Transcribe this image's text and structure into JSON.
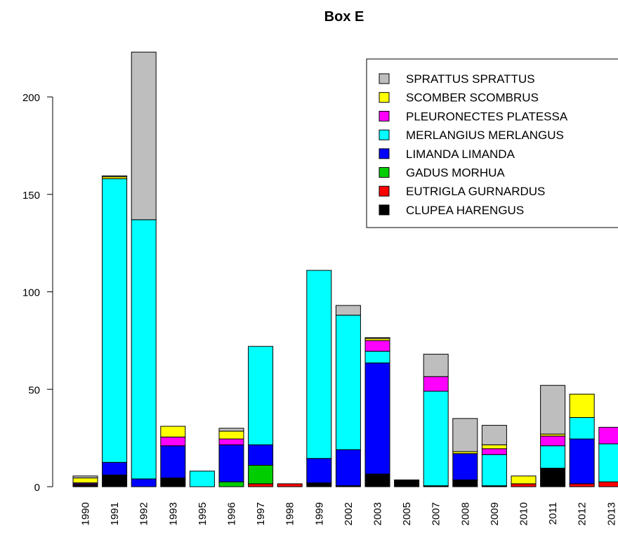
{
  "chart_data": {
    "type": "bar",
    "stacked": true,
    "title": "Box E",
    "xlabel": "",
    "ylabel": "",
    "ylim": [
      0,
      225
    ],
    "yticks": [
      0,
      50,
      100,
      150,
      200
    ],
    "grid": false,
    "legend_position": "top-right",
    "categories": [
      "1990",
      "1991",
      "1992",
      "1993",
      "1995",
      "1996",
      "1997",
      "1998",
      "1999",
      "2002",
      "2003",
      "2005",
      "2007",
      "2008",
      "2009",
      "2010",
      "2011",
      "2012",
      "2013"
    ],
    "series": [
      {
        "name": "CLUPEA HARENGUS",
        "color": "#000000",
        "values": [
          0.5,
          6,
          0,
          4.5,
          0,
          0,
          0,
          0,
          2,
          0.5,
          6.5,
          3.5,
          0.5,
          3.5,
          0.5,
          0,
          9.5,
          0,
          0
        ]
      },
      {
        "name": "EUTRIGLA GURNARDUS",
        "color": "#ff0000",
        "values": [
          0.5,
          0,
          0,
          0,
          0,
          0,
          1.5,
          1.5,
          0,
          0,
          0,
          0,
          0,
          0,
          0,
          1.5,
          0,
          1.5,
          2.5
        ]
      },
      {
        "name": "GADUS MORHUA",
        "color": "#00cd00",
        "values": [
          0,
          0,
          0,
          0,
          0,
          2.5,
          9.5,
          0,
          0,
          0,
          0,
          0,
          0,
          0,
          0,
          0,
          0,
          0,
          0
        ]
      },
      {
        "name": "LIMANDA LIMANDA",
        "color": "#0000ff",
        "values": [
          0.5,
          6.5,
          4,
          16.5,
          0,
          19,
          10.5,
          0,
          12.5,
          18.5,
          57,
          0,
          0,
          13.5,
          0,
          0,
          0,
          23,
          0
        ]
      },
      {
        "name": "MERLANGIUS MERLANGUS",
        "color": "#00ffff",
        "values": [
          0,
          145.5,
          133,
          0,
          8,
          0,
          50.5,
          0,
          96.5,
          69,
          6,
          0,
          48.5,
          0,
          16,
          0,
          11.5,
          11,
          19.5
        ]
      },
      {
        "name": "PLEURONECTES PLATESSA",
        "color": "#ff00ff",
        "values": [
          0.5,
          0,
          0,
          4.5,
          0,
          3,
          0,
          0,
          0,
          0,
          5.5,
          0,
          7.5,
          0,
          3,
          0,
          5,
          0,
          8.5
        ]
      },
      {
        "name": "SCOMBER SCOMBRUS",
        "color": "#ffff00",
        "values": [
          2.5,
          1,
          0,
          5.5,
          0,
          4,
          0,
          0,
          0,
          0,
          1,
          0,
          0,
          1,
          2,
          4,
          1,
          12,
          0
        ]
      },
      {
        "name": "SPRATTUS SPRATTUS",
        "color": "#bebebe",
        "values": [
          1,
          0.5,
          86,
          0,
          0,
          1.5,
          0,
          0,
          0,
          5,
          0.5,
          0,
          11.5,
          17,
          10,
          0,
          25,
          0,
          0
        ]
      }
    ],
    "legend_order": [
      "SPRATTUS SPRATTUS",
      "SCOMBER SCOMBRUS",
      "PLEURONECTES PLATESSA",
      "MERLANGIUS MERLANGUS",
      "LIMANDA LIMANDA",
      "GADUS MORHUA",
      "EUTRIGLA GURNARDUS",
      "CLUPEA HARENGUS"
    ]
  }
}
